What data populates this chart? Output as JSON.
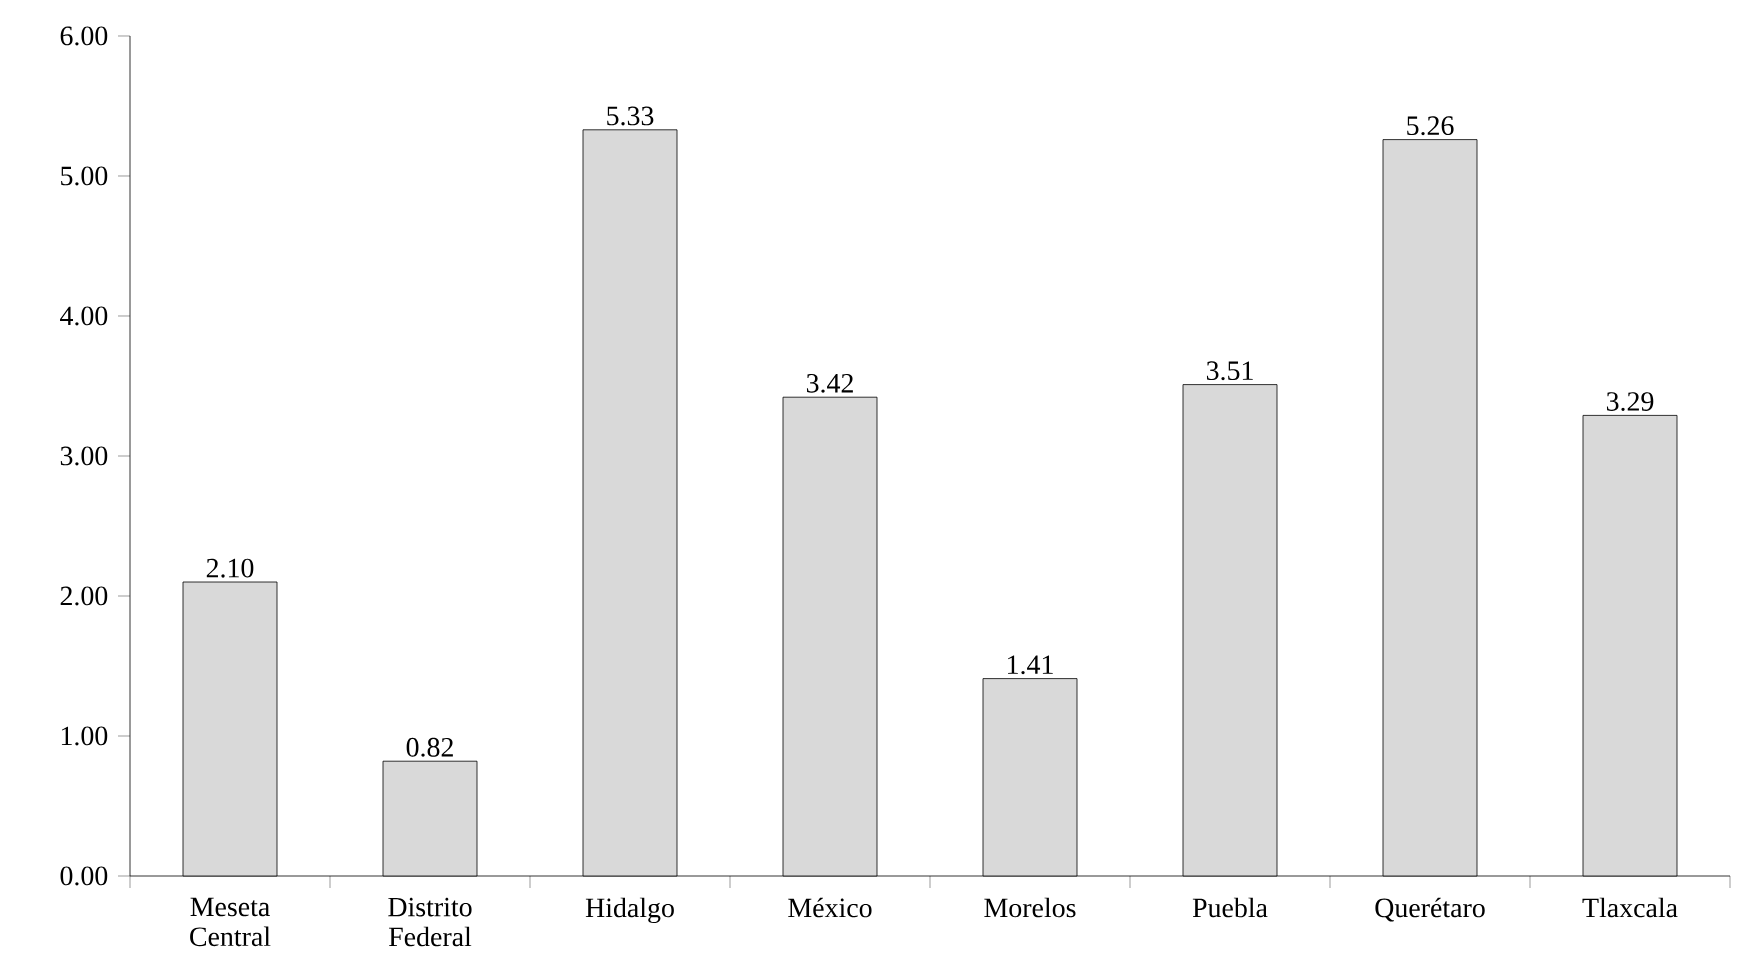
{
  "chart_data": {
    "type": "bar",
    "categories": [
      "Meseta Central",
      "Distrito Federal",
      "Hidalgo",
      "México",
      "Morelos",
      "Puebla",
      "Querétaro",
      "Tlaxcala"
    ],
    "values": [
      2.1,
      0.82,
      5.33,
      3.42,
      1.41,
      3.51,
      5.26,
      3.29
    ],
    "value_labels": [
      "2.10",
      "0.82",
      "5.33",
      "3.42",
      "1.41",
      "3.51",
      "5.26",
      "3.29"
    ],
    "color": "#d9d9d9",
    "ylim": [
      0,
      6
    ],
    "yticks": [
      {
        "value": 0,
        "label": "0.00"
      },
      {
        "value": 1,
        "label": "1.00"
      },
      {
        "value": 2,
        "label": "2.00"
      },
      {
        "value": 3,
        "label": "3.00"
      },
      {
        "value": 4,
        "label": "4.00"
      },
      {
        "value": 5,
        "label": "5.00"
      },
      {
        "value": 6,
        "label": "6.00"
      }
    ],
    "grid": false
  }
}
